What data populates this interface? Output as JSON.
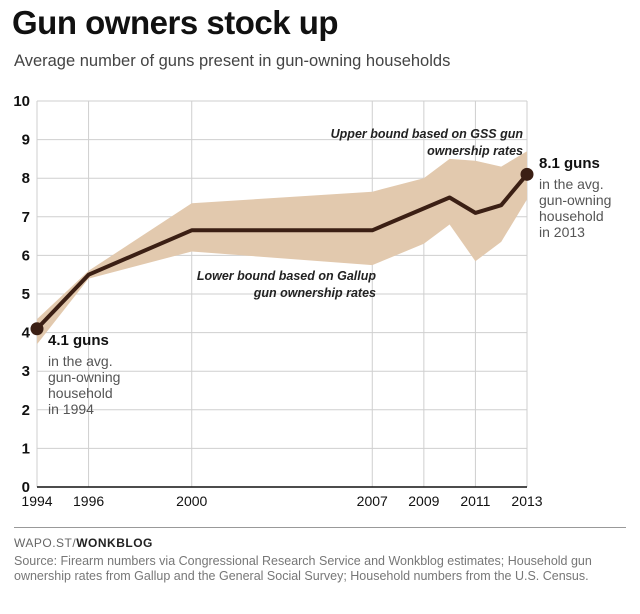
{
  "header": {
    "title": "Gun owners stock up",
    "subtitle": "Average number of guns present in gun-owning households"
  },
  "annotations": {
    "upper_line1": "Upper bound based on GSS gun",
    "upper_line2": "ownership rates",
    "lower_line1": "Lower bound based on Gallup",
    "lower_line2": "gun ownership rates"
  },
  "callouts": {
    "start": {
      "value": "4.1 guns",
      "lines": [
        "in the avg.",
        "gun-owning",
        "household",
        "in 1994"
      ]
    },
    "end": {
      "value": "8.1 guns",
      "lines": [
        "in the avg.",
        "gun-owning",
        "household",
        "in 2013"
      ]
    }
  },
  "footer": {
    "credit_prefix": "WAPO.ST/",
    "credit_bold": "WONKBLOG",
    "source": "Source: Firearm numbers via Congressional Research Service and Wonkblog estimates; Household gun ownership rates from Gallup and the General Social Survey; Household numbers from the U.S. Census."
  },
  "colors": {
    "line": "#3b1f14",
    "band": "#e2c9ae",
    "grid": "#cfcfcf",
    "axis": "#111111"
  },
  "chart_data": {
    "type": "line",
    "x_tick_labels": [
      "1994",
      "1996",
      "2000",
      "2007",
      "2009",
      "2011",
      "2013"
    ],
    "x_ticks": [
      1994,
      1996,
      2000,
      2007,
      2009,
      2011,
      2013
    ],
    "y_ticks": [
      0,
      1,
      2,
      3,
      4,
      5,
      6,
      7,
      8,
      9,
      10
    ],
    "xlim": [
      1994,
      2013
    ],
    "ylim": [
      0,
      10
    ],
    "grid": true,
    "series": [
      {
        "x": [
          1994,
          1996,
          2000,
          2007,
          2010,
          2011,
          2012,
          2013
        ],
        "y": [
          4.1,
          5.5,
          6.65,
          6.65,
          7.5,
          7.1,
          7.3,
          8.1
        ]
      }
    ],
    "band": {
      "x": [
        1994,
        1996,
        2000,
        2007,
        2009,
        2010,
        2011,
        2012,
        2013
      ],
      "upper": [
        4.35,
        5.6,
        7.35,
        7.65,
        8.0,
        8.5,
        8.45,
        8.3,
        8.7
      ],
      "lower": [
        3.7,
        5.4,
        6.1,
        5.75,
        6.3,
        6.8,
        5.85,
        6.35,
        7.45
      ]
    }
  }
}
